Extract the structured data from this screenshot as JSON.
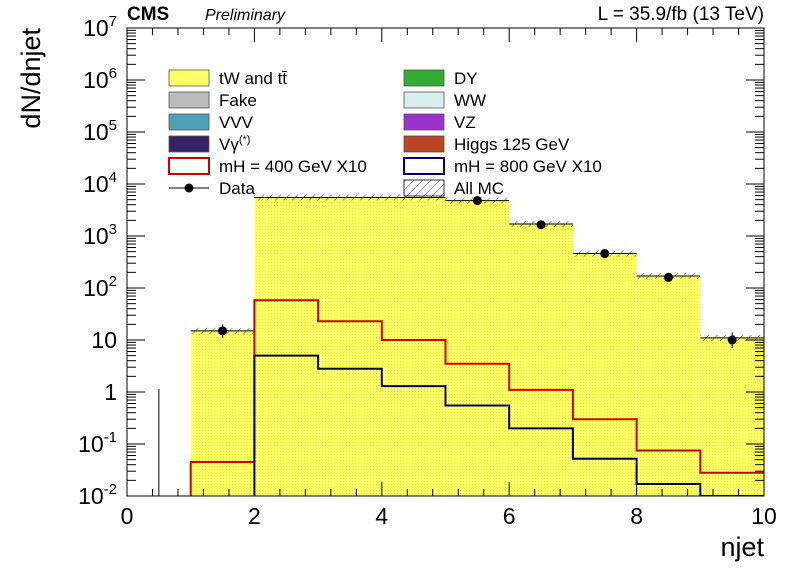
{
  "header": {
    "experiment": "CMS",
    "status": "Preliminary",
    "lumi": "L = 35.9/fb (13 TeV)"
  },
  "chart_data": {
    "type": "bar",
    "xlabel": "njet",
    "ylabel": "dN/dnjet",
    "xlim": [
      0,
      10
    ],
    "ylim": [
      0.01,
      10000000
    ],
    "yscale": "log",
    "bin_edges": [
      0,
      1,
      2,
      3,
      4,
      5,
      6,
      7,
      8,
      9,
      10
    ],
    "x_ticks": [
      "0",
      "2",
      "4",
      "6",
      "8",
      "10"
    ],
    "y_ticks": [
      {
        "mantissa": "10",
        "exp": "-2",
        "v": 0.01
      },
      {
        "mantissa": "10",
        "exp": "-1",
        "v": 0.1
      },
      {
        "mantissa": "1",
        "exp": "",
        "v": 1
      },
      {
        "mantissa": "10",
        "exp": "",
        "v": 10
      },
      {
        "mantissa": "10",
        "exp": "2",
        "v": 100
      },
      {
        "mantissa": "10",
        "exp": "3",
        "v": 1000
      },
      {
        "mantissa": "10",
        "exp": "4",
        "v": 10000
      },
      {
        "mantissa": "10",
        "exp": "5",
        "v": 100000
      },
      {
        "mantissa": "10",
        "exp": "6",
        "v": 1000000
      },
      {
        "mantissa": "10",
        "exp": "7",
        "v": 10000000
      }
    ],
    "series": [
      {
        "name": "tW and tt̄",
        "kind": "fill",
        "color": "#ffff66",
        "values": [
          0,
          15,
          5500,
          5500,
          5500,
          4800,
          1700,
          460,
          170,
          11
        ]
      },
      {
        "name": "mH = 400 GeV X10",
        "kind": "line",
        "color": "#cc0000",
        "values": [
          0,
          0.045,
          58,
          23,
          10,
          3.5,
          1.1,
          0.3,
          0.075,
          0.028
        ]
      },
      {
        "name": "mH = 800 GeV X10",
        "kind": "line",
        "color": "#000066",
        "values": [
          0,
          0,
          5,
          2.8,
          1.3,
          0.55,
          0.2,
          0.052,
          0.017,
          0.01
        ]
      },
      {
        "name": "All MC",
        "kind": "hatch",
        "values": [
          0,
          15,
          5500,
          5500,
          5500,
          4800,
          1700,
          460,
          170,
          11
        ]
      },
      {
        "name": "Data",
        "kind": "points",
        "color": "#000000",
        "x": [
          0.5,
          1.5,
          5.5,
          6.5,
          7.5,
          8.5,
          9.5
        ],
        "values": [
          0,
          15,
          4800,
          1650,
          460,
          160,
          10
        ],
        "err_hi": [
          1.15,
          20,
          4870,
          1690,
          481,
          173,
          14
        ],
        "err_lo": [
          0,
          11,
          4730,
          1610,
          439,
          148,
          7
        ]
      }
    ],
    "legend": {
      "placement": "top-left",
      "entries": [
        {
          "label": "tW and tt̄",
          "type": "fill",
          "color": "#ffff66"
        },
        {
          "label": "DY",
          "type": "fill",
          "color": "#33aa33"
        },
        {
          "label": "Fake",
          "type": "fill",
          "color": "#bbbbbb"
        },
        {
          "label": "WW",
          "type": "fill",
          "color": "#d7f0ee"
        },
        {
          "label": "VVV",
          "type": "fill",
          "color": "#4ea1b5"
        },
        {
          "label": "VZ",
          "type": "fill",
          "color": "#9933cc"
        },
        {
          "label": "Vγ",
          "sup": "(*)",
          "type": "fill",
          "color": "#332266"
        },
        {
          "label": "Higgs 125 GeV",
          "type": "fill",
          "color": "#bb4422"
        },
        {
          "label": "mH = 400 GeV X10",
          "type": "line",
          "color": "#cc0000"
        },
        {
          "label": "mH = 800 GeV X10",
          "type": "line",
          "color": "#000066"
        },
        {
          "label": "Data",
          "type": "marker",
          "color": "#000000"
        },
        {
          "label": "All MC",
          "type": "hatch",
          "color": "#444444"
        }
      ]
    },
    "grid": false
  }
}
